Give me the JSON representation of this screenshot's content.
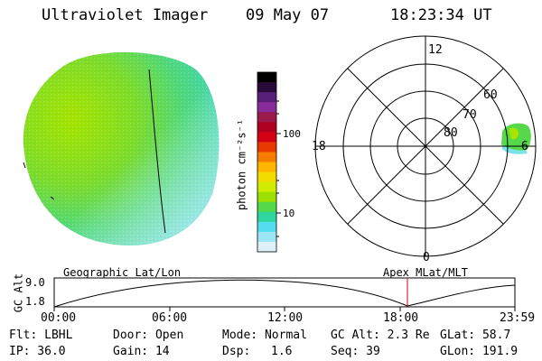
{
  "header": {
    "instrument": "Ultraviolet Imager",
    "date": "09 May 07",
    "time": "18:23:34 UT"
  },
  "colorbar": {
    "unit_label": "photon cm⁻²s⁻¹",
    "ticks": [
      "100",
      "10"
    ],
    "colors": [
      "#000000",
      "#2a0a3a",
      "#5a1f78",
      "#8a2b9a",
      "#9a1a4a",
      "#b00020",
      "#d40015",
      "#e83a00",
      "#f57c00",
      "#ffb400",
      "#f2dc00",
      "#d2ec00",
      "#9be000",
      "#55d84a",
      "#2fd6a0",
      "#55dcf0",
      "#9be6f5",
      "#dcf2f8"
    ]
  },
  "polar": {
    "lat_labels": [
      "80",
      "70",
      "60"
    ],
    "mlt_labels": {
      "top": "12",
      "right": "6",
      "bottom": "0",
      "left": "18"
    }
  },
  "altitude_strip": {
    "y_title": "GC Alt",
    "y_ticks": [
      "9.0",
      "1.8"
    ],
    "left_caption": "Geographic Lat/Lon",
    "right_caption": "Apex MLat/MLT",
    "x_ticks": [
      "00:00",
      "06:00",
      "12:00",
      "18:00",
      "23:59"
    ]
  },
  "status": {
    "flt": "Flt: LBHL",
    "ip": "IP: 36.0",
    "door": "Door: Open",
    "gain": "Gain: 14",
    "mode": "Mode: Normal",
    "dsp_label": "Dsp:",
    "dsp_value": "1.6",
    "gc_alt": "GC Alt: 2.3 Re",
    "seq": "Seq: 39",
    "glat": "GLat: 58.7",
    "glon": "GLon: 191.9"
  }
}
